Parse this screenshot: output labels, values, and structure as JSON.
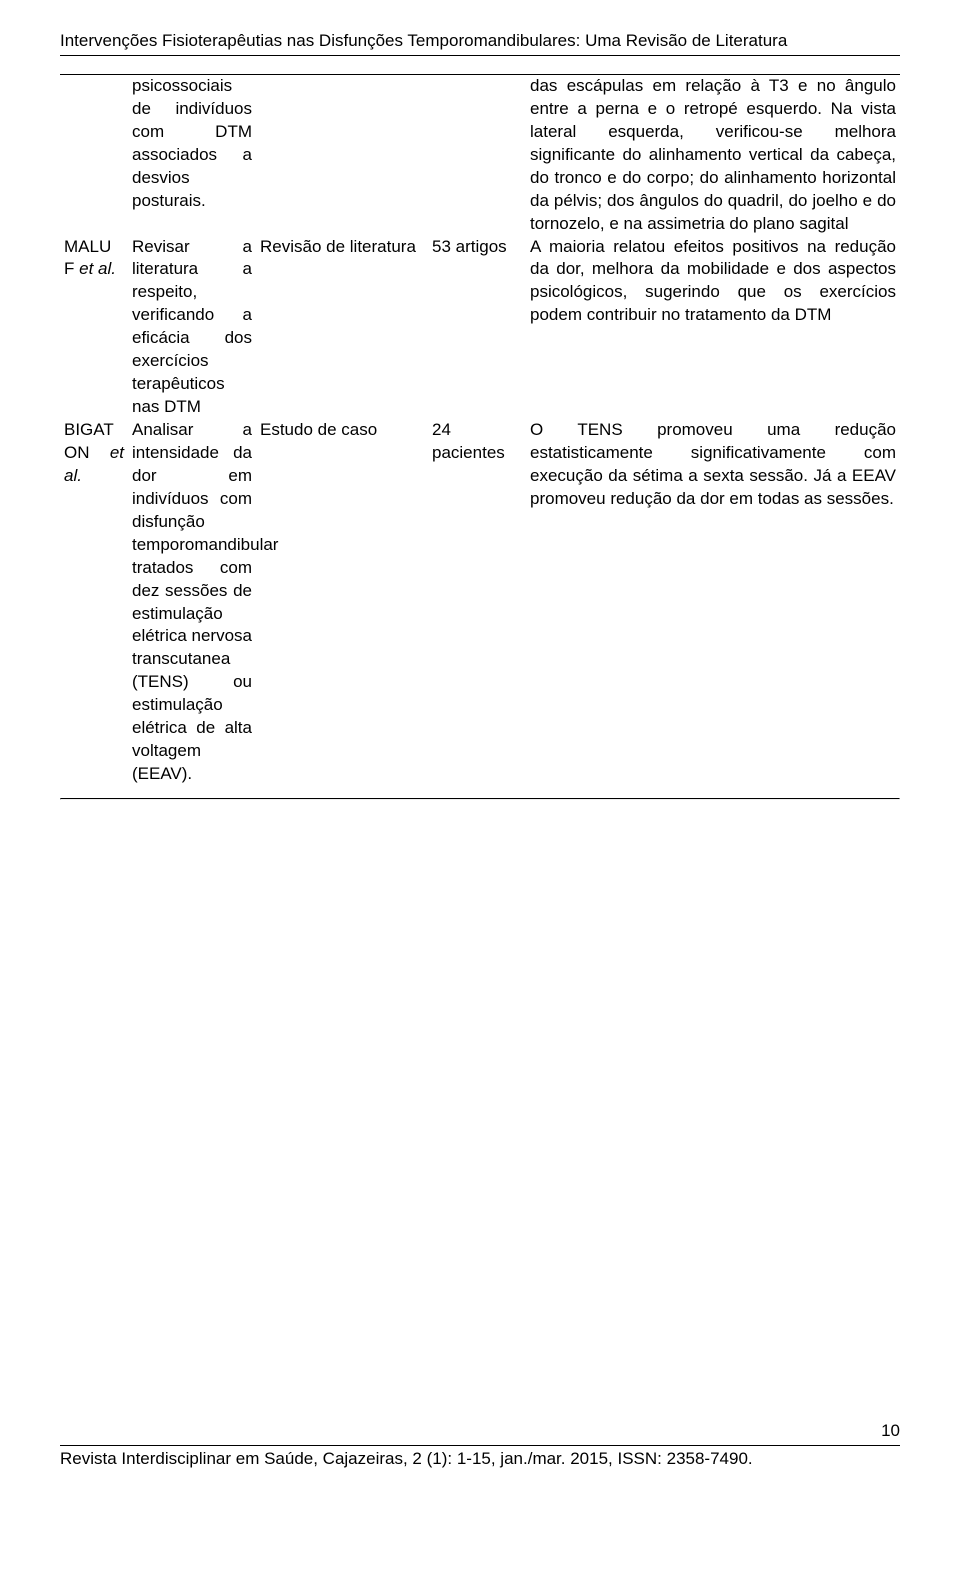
{
  "header": {
    "title": "Intervenções Fisioterapêutias nas Disfunções Temporomandibulares: Uma Revisão de Literatura"
  },
  "rows": [
    {
      "author": "",
      "author_extra": "",
      "objective": "psicossociais de indivíduos com DTM associados a desvios posturais.",
      "method": "",
      "sample": "",
      "result": "das escápulas em relação à T3 e no ângulo entre a perna e o retropé esquerdo. Na vista lateral esquerda, verificou-se melhora significante do alinhamento vertical da cabeça, do tronco e do corpo; do alinhamento horizontal da pélvis; dos ângulos do quadril, do joelho e do tornozelo, e na assimetria do plano sagital"
    },
    {
      "author": "MALU",
      "author_extra": "F et al.",
      "objective": "Revisar a literatura a respeito, verificando a eficácia dos exercícios terapêuticos nas DTM",
      "method": "Revisão de literatura",
      "sample": "53 artigos",
      "result": "A maioria relatou efeitos positivos na redução da dor, melhora da mobilidade e dos aspectos psicológicos, sugerindo que os exercícios podem contribuir no tratamento da DTM"
    },
    {
      "author": "BIGAT",
      "author_extra": "ON et al.",
      "objective": "Analisar a intensidade da dor em indivíduos com disfunção temporomandibular tratados com dez sessões de estimulação elétrica nervosa transcutanea (TENS) ou estimulação elétrica de alta voltagem (EEAV).",
      "method": "Estudo de caso",
      "sample": "24 pacientes",
      "result": "O TENS promoveu uma redução estatisticamente significativamente com execução da sétima a sexta sessão. Já a EEAV promoveu redução da dor em todas as sessões."
    }
  ],
  "footer": {
    "citation": "Revista Interdisciplinar em Saúde, Cajazeiras, 2 (1): 1-15, jan./mar. 2015, ISSN: 2358-7490.",
    "page": "10"
  }
}
